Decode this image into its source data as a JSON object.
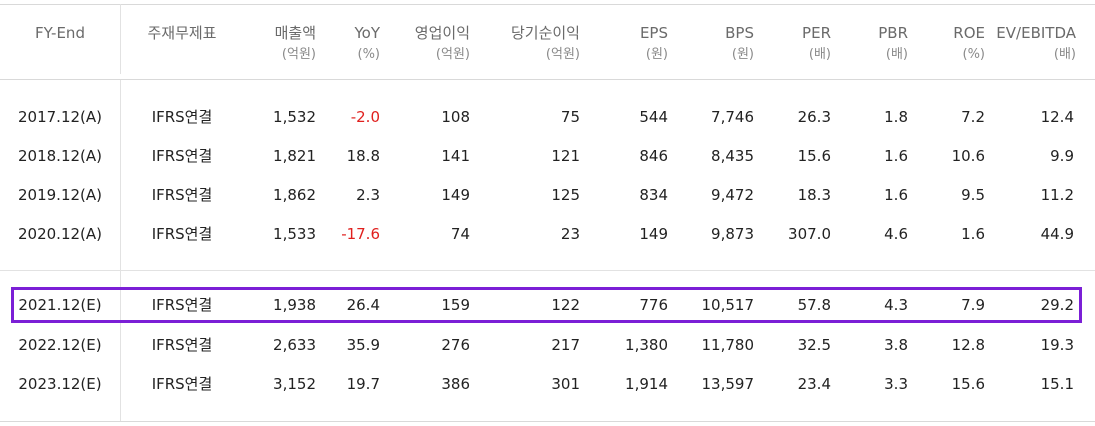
{
  "headers": [
    {
      "label": "FY-End",
      "unit": ""
    },
    {
      "label": "주재무제표",
      "unit": ""
    },
    {
      "label": "매출액",
      "unit": "(억원)"
    },
    {
      "label": "YoY",
      "unit": "(%)"
    },
    {
      "label": "영업이익",
      "unit": "(억원)"
    },
    {
      "label": "당기순이익",
      "unit": "(억원)"
    },
    {
      "label": "EPS",
      "unit": "(원)"
    },
    {
      "label": "BPS",
      "unit": "(원)"
    },
    {
      "label": "PER",
      "unit": "(배)"
    },
    {
      "label": "PBR",
      "unit": "(배)"
    },
    {
      "label": "ROE",
      "unit": "(%)"
    },
    {
      "label": "EV/EBITDA",
      "unit": "(배)"
    }
  ],
  "actual_rows": [
    {
      "fy": "2017.12(A)",
      "basis": "IFRS연결",
      "sales": "1,532",
      "yoy": "-2.0",
      "op": "108",
      "net": "75",
      "eps": "544",
      "bps": "7,746",
      "per": "26.3",
      "pbr": "1.8",
      "roe": "7.2",
      "ev": "12.4"
    },
    {
      "fy": "2018.12(A)",
      "basis": "IFRS연결",
      "sales": "1,821",
      "yoy": "18.8",
      "op": "141",
      "net": "121",
      "eps": "846",
      "bps": "8,435",
      "per": "15.6",
      "pbr": "1.6",
      "roe": "10.6",
      "ev": "9.9"
    },
    {
      "fy": "2019.12(A)",
      "basis": "IFRS연결",
      "sales": "1,862",
      "yoy": "2.3",
      "op": "149",
      "net": "125",
      "eps": "834",
      "bps": "9,472",
      "per": "18.3",
      "pbr": "1.6",
      "roe": "9.5",
      "ev": "11.2"
    },
    {
      "fy": "2020.12(A)",
      "basis": "IFRS연결",
      "sales": "1,533",
      "yoy": "-17.6",
      "op": "74",
      "net": "23",
      "eps": "149",
      "bps": "9,873",
      "per": "307.0",
      "pbr": "4.6",
      "roe": "1.6",
      "ev": "44.9"
    }
  ],
  "estimate_rows": [
    {
      "fy": "2021.12(E)",
      "basis": "IFRS연결",
      "sales": "1,938",
      "yoy": "26.4",
      "op": "159",
      "net": "122",
      "eps": "776",
      "bps": "10,517",
      "per": "57.8",
      "pbr": "4.3",
      "roe": "7.9",
      "ev": "29.2"
    },
    {
      "fy": "2022.12(E)",
      "basis": "IFRS연결",
      "sales": "2,633",
      "yoy": "35.9",
      "op": "276",
      "net": "217",
      "eps": "1,380",
      "bps": "11,780",
      "per": "32.5",
      "pbr": "3.8",
      "roe": "12.8",
      "ev": "19.3"
    },
    {
      "fy": "2023.12(E)",
      "basis": "IFRS연결",
      "sales": "3,152",
      "yoy": "19.7",
      "op": "386",
      "net": "301",
      "eps": "1,914",
      "bps": "13,597",
      "per": "23.4",
      "pbr": "3.3",
      "roe": "15.6",
      "ev": "15.1"
    }
  ],
  "colors": {
    "negative": "#e0201e",
    "highlight_border": "#7b1fd6"
  }
}
